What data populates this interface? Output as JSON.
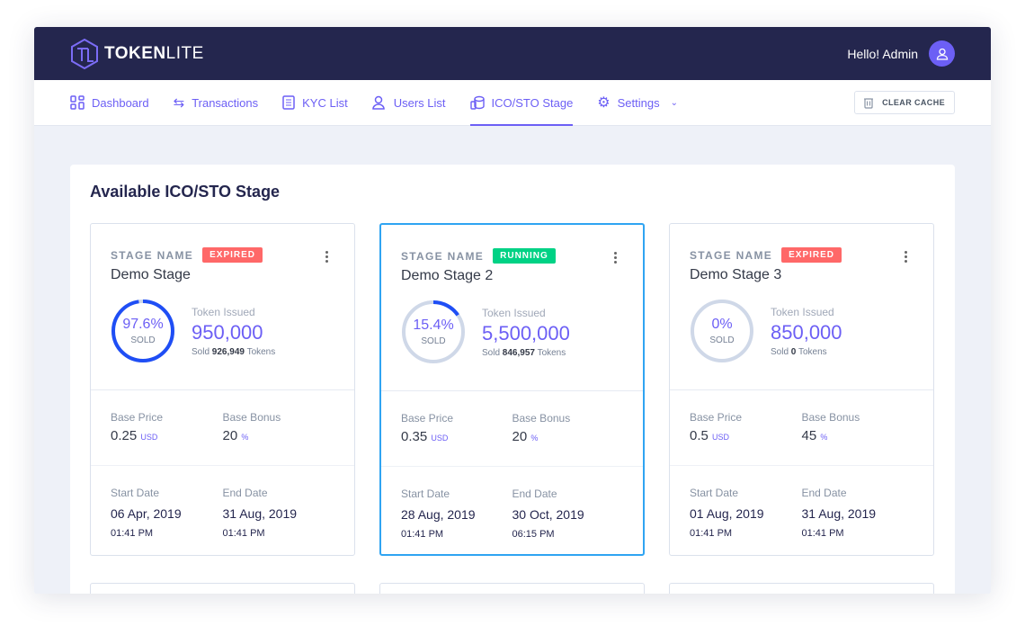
{
  "header": {
    "logo_bold": "TOKEN",
    "logo_light": "LITE",
    "greeting": "Hello! Admin"
  },
  "nav": {
    "items": [
      {
        "label": "Dashboard",
        "icon": "grid-icon"
      },
      {
        "label": "Transactions",
        "icon": "arrows-exchange-icon"
      },
      {
        "label": "KYC List",
        "icon": "document-list-icon"
      },
      {
        "label": "Users List",
        "icon": "users-icon"
      },
      {
        "label": "ICO/STO Stage",
        "icon": "coins-icon",
        "active": true
      },
      {
        "label": "Settings",
        "icon": "gear-icon",
        "dropdown": true
      }
    ],
    "clear_cache": "CLEAR CACHE"
  },
  "colors": {
    "accent": "#6c5ff5",
    "header": "#24264e",
    "expired": "#ff6868",
    "running": "#00d285",
    "ring": "#1f4ef5",
    "selected": "#2fa4f2"
  },
  "page": {
    "title": "Available ICO/STO Stage"
  },
  "stages": [
    {
      "label": "STAGE NAME",
      "status": "EXPIRED",
      "name": "Demo Stage",
      "percent": "97.6%",
      "percent_value": 97.6,
      "sold_label": "SOLD",
      "issued_label": "Token Issued",
      "issued": "950,000",
      "sold_prefix": "Sold",
      "sold": "926,949",
      "sold_suffix": "Tokens",
      "price_label": "Base Price",
      "price": "0.25",
      "price_unit": "USD",
      "bonus_label": "Base Bonus",
      "bonus": "20",
      "bonus_unit": "%",
      "start_label": "Start Date",
      "start_date": "06 Apr, 2019",
      "start_time": "01:41 PM",
      "end_label": "End Date",
      "end_date": "31 Aug, 2019",
      "end_time": "01:41 PM"
    },
    {
      "label": "STAGE NAME",
      "status": "RUNNING",
      "name": "Demo Stage 2",
      "percent": "15.4%",
      "percent_value": 15.4,
      "sold_label": "SOLD",
      "issued_label": "Token Issued",
      "issued": "5,500,000",
      "sold_prefix": "Sold",
      "sold": "846,957",
      "sold_suffix": "Tokens",
      "price_label": "Base Price",
      "price": "0.35",
      "price_unit": "USD",
      "bonus_label": "Base Bonus",
      "bonus": "20",
      "bonus_unit": "%",
      "start_label": "Start Date",
      "start_date": "28 Aug, 2019",
      "start_time": "01:41 PM",
      "end_label": "End Date",
      "end_date": "30 Oct, 2019",
      "end_time": "06:15 PM"
    },
    {
      "label": "STAGE NAME",
      "status": "EXPIRED",
      "name": "Demo Stage 3",
      "percent": "0%",
      "percent_value": 0,
      "sold_label": "SOLD",
      "issued_label": "Token Issued",
      "issued": "850,000",
      "sold_prefix": "Sold",
      "sold": "0",
      "sold_suffix": "Tokens",
      "price_label": "Base Price",
      "price": "0.5",
      "price_unit": "USD",
      "bonus_label": "Base Bonus",
      "bonus": "45",
      "bonus_unit": "%",
      "start_label": "Start Date",
      "start_date": "01 Aug, 2019",
      "start_time": "01:41 PM",
      "end_label": "End Date",
      "end_date": "31 Aug, 2019",
      "end_time": "01:41 PM"
    }
  ]
}
